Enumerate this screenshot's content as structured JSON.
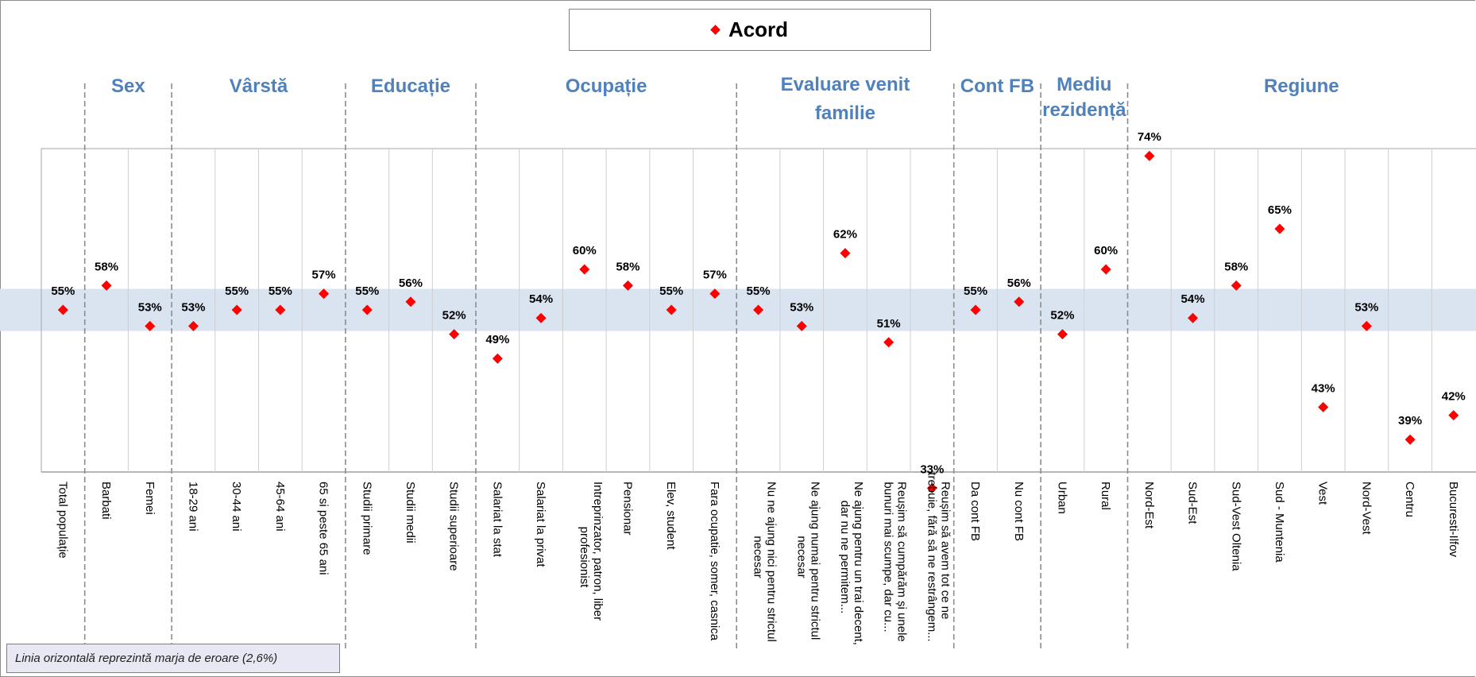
{
  "chart_data": {
    "type": "scatter",
    "title": "",
    "legend": {
      "label": "Acord",
      "marker": "diamond",
      "color": "#ff0000",
      "position": "top-center"
    },
    "band_color": "#dae3f0",
    "margin_of_error": 2.6,
    "note": "Linia orizontală reprezintă marja de eroare (2,6%)",
    "groups": [
      {
        "title": "Sex",
        "lines": [
          "Sex"
        ]
      },
      {
        "title": "Vârstă",
        "lines": [
          "Vârstă"
        ]
      },
      {
        "title": "Educație",
        "lines": [
          "Educație"
        ]
      },
      {
        "title": "Ocupație",
        "lines": [
          "Ocupație"
        ]
      },
      {
        "title": "Evaluare venit familie",
        "lines": [
          "Evaluare venit",
          "familie"
        ]
      },
      {
        "title": "Cont FB",
        "lines": [
          "Cont FB"
        ]
      },
      {
        "title": "Mediu rezidență",
        "lines": [
          "Mediu",
          "rezidență"
        ]
      },
      {
        "title": "Regiune",
        "lines": [
          "Regiune"
        ]
      }
    ],
    "categories": [
      {
        "lines": [
          "Total populație"
        ],
        "value": 55,
        "label": "55%"
      },
      {
        "lines": [
          "Barbati"
        ],
        "value": 58,
        "label": "58%"
      },
      {
        "lines": [
          "Femei"
        ],
        "value": 53,
        "label": "53%"
      },
      {
        "lines": [
          "18-29 ani"
        ],
        "value": 53,
        "label": "53%"
      },
      {
        "lines": [
          "30-44 ani"
        ],
        "value": 55,
        "label": "55%"
      },
      {
        "lines": [
          "45-64 ani"
        ],
        "value": 55,
        "label": "55%"
      },
      {
        "lines": [
          "65 si peste 65 ani"
        ],
        "value": 57,
        "label": "57%"
      },
      {
        "lines": [
          "Studii primare"
        ],
        "value": 55,
        "label": "55%"
      },
      {
        "lines": [
          "Studii medii"
        ],
        "value": 56,
        "label": "56%"
      },
      {
        "lines": [
          "Studii superioare"
        ],
        "value": 52,
        "label": "52%"
      },
      {
        "lines": [
          "Salariat la stat"
        ],
        "value": 49,
        "label": "49%"
      },
      {
        "lines": [
          "Salariat la privat"
        ],
        "value": 54,
        "label": "54%"
      },
      {
        "lines": [
          "Intreprinzator, patron, liber",
          "profesionist"
        ],
        "value": 60,
        "label": "60%"
      },
      {
        "lines": [
          "Pensionar"
        ],
        "value": 58,
        "label": "58%"
      },
      {
        "lines": [
          "Elev, student"
        ],
        "value": 55,
        "label": "55%"
      },
      {
        "lines": [
          "Fara ocupatie, somer, casnica"
        ],
        "value": 57,
        "label": "57%"
      },
      {
        "lines": [
          "Nu ne ajung nici pentru strictul",
          "necesar"
        ],
        "value": 55,
        "label": "55%"
      },
      {
        "lines": [
          "Ne ajung numai pentru strictul",
          "necesar"
        ],
        "value": 53,
        "label": "53%"
      },
      {
        "lines": [
          "Ne ajung pentru un trai decent,",
          "dar nu ne permitem..."
        ],
        "value": 62,
        "label": "62%"
      },
      {
        "lines": [
          "Reușim să cumpărăm și unele",
          "bunuri mai scumpe, dar cu..."
        ],
        "value": 51,
        "label": "51%"
      },
      {
        "lines": [
          "Reușim să avem tot ce ne",
          "trebuie, fără să ne restrângem..."
        ],
        "value": 33,
        "label": "33%"
      },
      {
        "lines": [
          "Da cont FB"
        ],
        "value": 55,
        "label": "55%"
      },
      {
        "lines": [
          "Nu cont FB"
        ],
        "value": 56,
        "label": "56%"
      },
      {
        "lines": [
          "Urban"
        ],
        "value": 52,
        "label": "52%"
      },
      {
        "lines": [
          "Rural"
        ],
        "value": 60,
        "label": "60%"
      },
      {
        "lines": [
          "Nord-Est"
        ],
        "value": 74,
        "label": "74%"
      },
      {
        "lines": [
          "Sud-Est"
        ],
        "value": 54,
        "label": "54%"
      },
      {
        "lines": [
          "Sud-Vest Oltenia"
        ],
        "value": 58,
        "label": "58%"
      },
      {
        "lines": [
          "Sud - Muntenia"
        ],
        "value": 65,
        "label": "65%"
      },
      {
        "lines": [
          "Vest"
        ],
        "value": 43,
        "label": "43%"
      },
      {
        "lines": [
          "Nord-Vest"
        ],
        "value": 53,
        "label": "53%"
      },
      {
        "lines": [
          "Centru"
        ],
        "value": 39,
        "label": "39%"
      },
      {
        "lines": [
          "Bucuresti-Ilfov"
        ],
        "value": 42,
        "label": "42%"
      }
    ]
  }
}
